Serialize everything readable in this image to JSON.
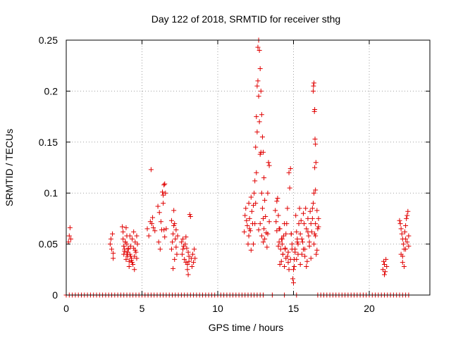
{
  "chart_data": {
    "type": "scatter",
    "title": "Day 122 of 2018, SRMTID for receiver sthg",
    "xlabel": "GPS time / hours",
    "ylabel": "SRMTID / TECUs",
    "xlim": [
      0,
      24
    ],
    "ylim": [
      0,
      0.25
    ],
    "x_ticks": [
      0,
      5,
      10,
      15,
      20
    ],
    "x_tick_labels": [
      "0",
      "5",
      "10",
      "15",
      "20"
    ],
    "y_ticks": [
      0,
      0.05,
      0.1,
      0.15,
      0.2,
      0.25
    ],
    "y_tick_labels": [
      "0",
      "0.05",
      "0.1",
      "0.15",
      "0.2",
      "0.25"
    ],
    "grid": true,
    "legend": "none",
    "marker": "+",
    "color": "#e00000",
    "series": [
      {
        "x": [
          0.15,
          0.2,
          0.25,
          0.3,
          2.9,
          2.95,
          3.0,
          3.05,
          3.1,
          3.1,
          3.7,
          3.75,
          3.8,
          3.85,
          3.9,
          3.95,
          4.0,
          4.0,
          4.05,
          4.1,
          4.15,
          4.2,
          4.2,
          4.25,
          4.3,
          4.35,
          4.4,
          4.45,
          4.5,
          4.55,
          4.6,
          4.65,
          4.7,
          3.75,
          3.85,
          3.95,
          4.05,
          4.15,
          4.25,
          4.35,
          4.45,
          4.55,
          4.65,
          3.8,
          3.9,
          4.0,
          4.1,
          4.3,
          4.5,
          5.35,
          5.45,
          5.55,
          5.6,
          5.65,
          5.7,
          5.75,
          5.85,
          6.05,
          6.1,
          6.15,
          6.2,
          6.25,
          6.3,
          6.35,
          6.4,
          6.45,
          6.5,
          6.55,
          6.6,
          6.4,
          6.45,
          6.5,
          6.95,
          7.0,
          7.05,
          7.1,
          7.15,
          7.2,
          7.25,
          7.3,
          7.35,
          7.05,
          7.15,
          7.25,
          6.95,
          7.1,
          7.6,
          7.65,
          7.7,
          7.75,
          7.8,
          7.85,
          7.9,
          7.95,
          8.0,
          8.05,
          8.1,
          8.15,
          8.2,
          8.25,
          8.3,
          8.35,
          8.4,
          8.45,
          8.5,
          8.0,
          8.05,
          8.1,
          7.7,
          7.9,
          11.75,
          11.8,
          11.85,
          11.9,
          11.95,
          12.0,
          12.05,
          12.1,
          12.15,
          12.2,
          12.25,
          12.3,
          12.35,
          12.4,
          12.45,
          12.5,
          12.55,
          12.6,
          12.65,
          12.7,
          12.75,
          12.8,
          12.85,
          12.9,
          12.95,
          13.0,
          13.05,
          13.1,
          13.15,
          13.2,
          13.25,
          13.3,
          13.35,
          13.4,
          12.05,
          12.1,
          12.2,
          12.35,
          12.45,
          12.5,
          12.55,
          12.6,
          12.65,
          12.7,
          12.75,
          12.8,
          12.85,
          12.9,
          12.95,
          13.0,
          13.05,
          13.1,
          13.3,
          13.4,
          12.7,
          12.8,
          12.9,
          13.0,
          13.8,
          13.85,
          13.9,
          13.95,
          14.0,
          14.05,
          14.1,
          14.15,
          14.2,
          14.25,
          14.3,
          14.35,
          14.4,
          14.45,
          14.5,
          14.55,
          14.6,
          14.65,
          14.7,
          14.75,
          14.8,
          14.85,
          14.9,
          14.95,
          15.0,
          15.05,
          15.1,
          15.15,
          15.2,
          15.25,
          15.3,
          15.35,
          13.9,
          14.0,
          14.1,
          14.2,
          14.3,
          14.4,
          14.5,
          14.6,
          14.7,
          14.8,
          14.9,
          15.0,
          15.1,
          15.2,
          15.3,
          14.05,
          14.25,
          14.45,
          14.65,
          14.85,
          15.05,
          15.25,
          15.4,
          15.45,
          15.5,
          15.55,
          15.6,
          15.65,
          15.7,
          15.75,
          15.8,
          15.85,
          15.9,
          15.95,
          16.0,
          16.05,
          16.1,
          16.15,
          16.2,
          16.25,
          16.3,
          16.35,
          16.4,
          16.45,
          16.5,
          16.55,
          16.6,
          16.65,
          15.45,
          15.55,
          15.65,
          15.75,
          15.85,
          15.95,
          16.05,
          16.15,
          16.25,
          16.35,
          16.45,
          16.55,
          16.65,
          16.3,
          16.32,
          16.35,
          16.38,
          16.4,
          16.42,
          16.45,
          16.48,
          16.4,
          16.45,
          20.9,
          20.95,
          21.0,
          21.05,
          21.1,
          21.15,
          21.0,
          22.0,
          22.05,
          22.1,
          22.15,
          22.2,
          22.25,
          22.3,
          22.35,
          22.4,
          22.45,
          22.5,
          22.55,
          22.6,
          22.1,
          22.2,
          22.3,
          22.4,
          22.5,
          22.6,
          22.2,
          22.4,
          0.0,
          0.2,
          0.4,
          0.6,
          0.8,
          1.0,
          1.2,
          1.4,
          1.6,
          1.8,
          2.0,
          2.2,
          2.4,
          2.6,
          2.8,
          3.0,
          3.2,
          3.4,
          3.6,
          3.8,
          4.0,
          4.2,
          4.4,
          4.6,
          4.8,
          5.0,
          5.2,
          5.4,
          5.6,
          5.8,
          6.0,
          6.2,
          6.4,
          6.6,
          6.8,
          7.0,
          7.2,
          7.4,
          7.6,
          7.8,
          8.0,
          8.2,
          8.4,
          8.6,
          8.8,
          9.0,
          9.2,
          9.4,
          9.6,
          9.8,
          10.0,
          10.2,
          10.4,
          10.6,
          10.8,
          11.0,
          11.2,
          11.4,
          11.6,
          11.8,
          12.0,
          12.2,
          12.4,
          12.6,
          12.8,
          13.0,
          13.6,
          14.4,
          15.2,
          16.6,
          16.8,
          17.0,
          17.2,
          17.4,
          17.6,
          17.8,
          18.0,
          18.2,
          18.4,
          18.6,
          18.8,
          19.0,
          19.2,
          19.4,
          19.6,
          19.8,
          20.0,
          20.2,
          20.4,
          20.6,
          20.8,
          21.0,
          21.2,
          21.4,
          21.6,
          21.8,
          22.0,
          22.2,
          22.4,
          22.6
        ],
        "y": [
          0.052,
          0.058,
          0.066,
          0.055,
          0.05,
          0.055,
          0.045,
          0.06,
          0.036,
          0.041,
          0.067,
          0.062,
          0.048,
          0.043,
          0.052,
          0.066,
          0.05,
          0.04,
          0.038,
          0.045,
          0.033,
          0.058,
          0.04,
          0.048,
          0.036,
          0.055,
          0.03,
          0.046,
          0.038,
          0.052,
          0.042,
          0.058,
          0.05,
          0.055,
          0.045,
          0.035,
          0.042,
          0.028,
          0.038,
          0.032,
          0.062,
          0.044,
          0.036,
          0.04,
          0.052,
          0.058,
          0.046,
          0.034,
          0.025,
          0.065,
          0.058,
          0.072,
          0.123,
          0.07,
          0.076,
          0.066,
          0.063,
          0.087,
          0.052,
          0.081,
          0.045,
          0.072,
          0.064,
          0.101,
          0.098,
          0.108,
          0.109,
          0.1,
          0.065,
          0.09,
          0.064,
          0.057,
          0.045,
          0.052,
          0.06,
          0.083,
          0.07,
          0.055,
          0.064,
          0.04,
          0.058,
          0.026,
          0.035,
          0.047,
          0.073,
          0.068,
          0.052,
          0.04,
          0.055,
          0.048,
          0.035,
          0.05,
          0.057,
          0.046,
          0.03,
          0.042,
          0.038,
          0.079,
          0.077,
          0.036,
          0.028,
          0.04,
          0.032,
          0.045,
          0.036,
          0.025,
          0.02,
          0.033,
          0.045,
          0.032,
          0.062,
          0.078,
          0.085,
          0.073,
          0.068,
          0.05,
          0.09,
          0.075,
          0.063,
          0.096,
          0.082,
          0.07,
          0.088,
          0.1,
          0.112,
          0.145,
          0.175,
          0.205,
          0.243,
          0.25,
          0.24,
          0.222,
          0.2,
          0.177,
          0.155,
          0.14,
          0.115,
          0.093,
          0.077,
          0.061,
          0.047,
          0.1,
          0.13,
          0.127,
          0.058,
          0.065,
          0.044,
          0.05,
          0.07,
          0.09,
          0.12,
          0.16,
          0.21,
          0.195,
          0.17,
          0.138,
          0.14,
          0.1,
          0.085,
          0.075,
          0.065,
          0.055,
          0.06,
          0.072,
          0.064,
          0.07,
          0.058,
          0.052,
          0.083,
          0.072,
          0.063,
          0.095,
          0.078,
          0.052,
          0.065,
          0.045,
          0.033,
          0.05,
          0.04,
          0.058,
          0.028,
          0.046,
          0.036,
          0.07,
          0.085,
          0.042,
          0.12,
          0.105,
          0.124,
          0.06,
          0.05,
          0.016,
          0.025,
          0.035,
          0.045,
          0.078,
          0.062,
          0.055,
          0.04,
          0.07,
          0.092,
          0.048,
          0.03,
          0.055,
          0.04,
          0.07,
          0.06,
          0.038,
          0.025,
          0.035,
          0.045,
          0.012,
          0.042,
          0.035,
          0.05,
          0.065,
          0.055,
          0.045,
          0.032,
          0.06,
          0.028,
          0.052,
          0.085,
          0.06,
          0.073,
          0.04,
          0.052,
          0.08,
          0.07,
          0.045,
          0.085,
          0.065,
          0.033,
          0.075,
          0.058,
          0.048,
          0.082,
          0.07,
          0.062,
          0.085,
          0.09,
          0.1,
          0.06,
          0.07,
          0.04,
          0.083,
          0.065,
          0.075,
          0.03,
          0.055,
          0.045,
          0.038,
          0.028,
          0.062,
          0.052,
          0.036,
          0.075,
          0.05,
          0.058,
          0.044,
          0.067,
          0.2,
          0.205,
          0.208,
          0.18,
          0.182,
          0.153,
          0.148,
          0.13,
          0.125,
          0.103,
          0.025,
          0.033,
          0.03,
          0.023,
          0.035,
          0.028,
          0.02,
          0.073,
          0.07,
          0.065,
          0.06,
          0.055,
          0.05,
          0.045,
          0.062,
          0.068,
          0.075,
          0.078,
          0.082,
          0.058,
          0.04,
          0.032,
          0.028,
          0.045,
          0.052,
          0.048,
          0.038,
          0.055,
          0,
          0,
          0,
          0,
          0,
          0,
          0,
          0,
          0,
          0,
          0,
          0,
          0,
          0,
          0,
          0,
          0,
          0,
          0,
          0,
          0,
          0,
          0,
          0,
          0,
          0,
          0,
          0,
          0,
          0,
          0,
          0,
          0,
          0,
          0,
          0,
          0,
          0,
          0,
          0,
          0,
          0,
          0,
          0,
          0,
          0,
          0,
          0,
          0,
          0,
          0,
          0,
          0,
          0,
          0,
          0,
          0,
          0,
          0,
          0,
          0,
          0,
          0,
          0,
          0,
          0,
          0,
          0,
          0,
          0,
          0,
          0,
          0,
          0,
          0,
          0,
          0,
          0,
          0,
          0,
          0,
          0,
          0,
          0,
          0,
          0,
          0,
          0,
          0,
          0,
          0,
          0,
          0,
          0,
          0,
          0,
          0,
          0,
          0,
          0
        ]
      }
    ]
  }
}
